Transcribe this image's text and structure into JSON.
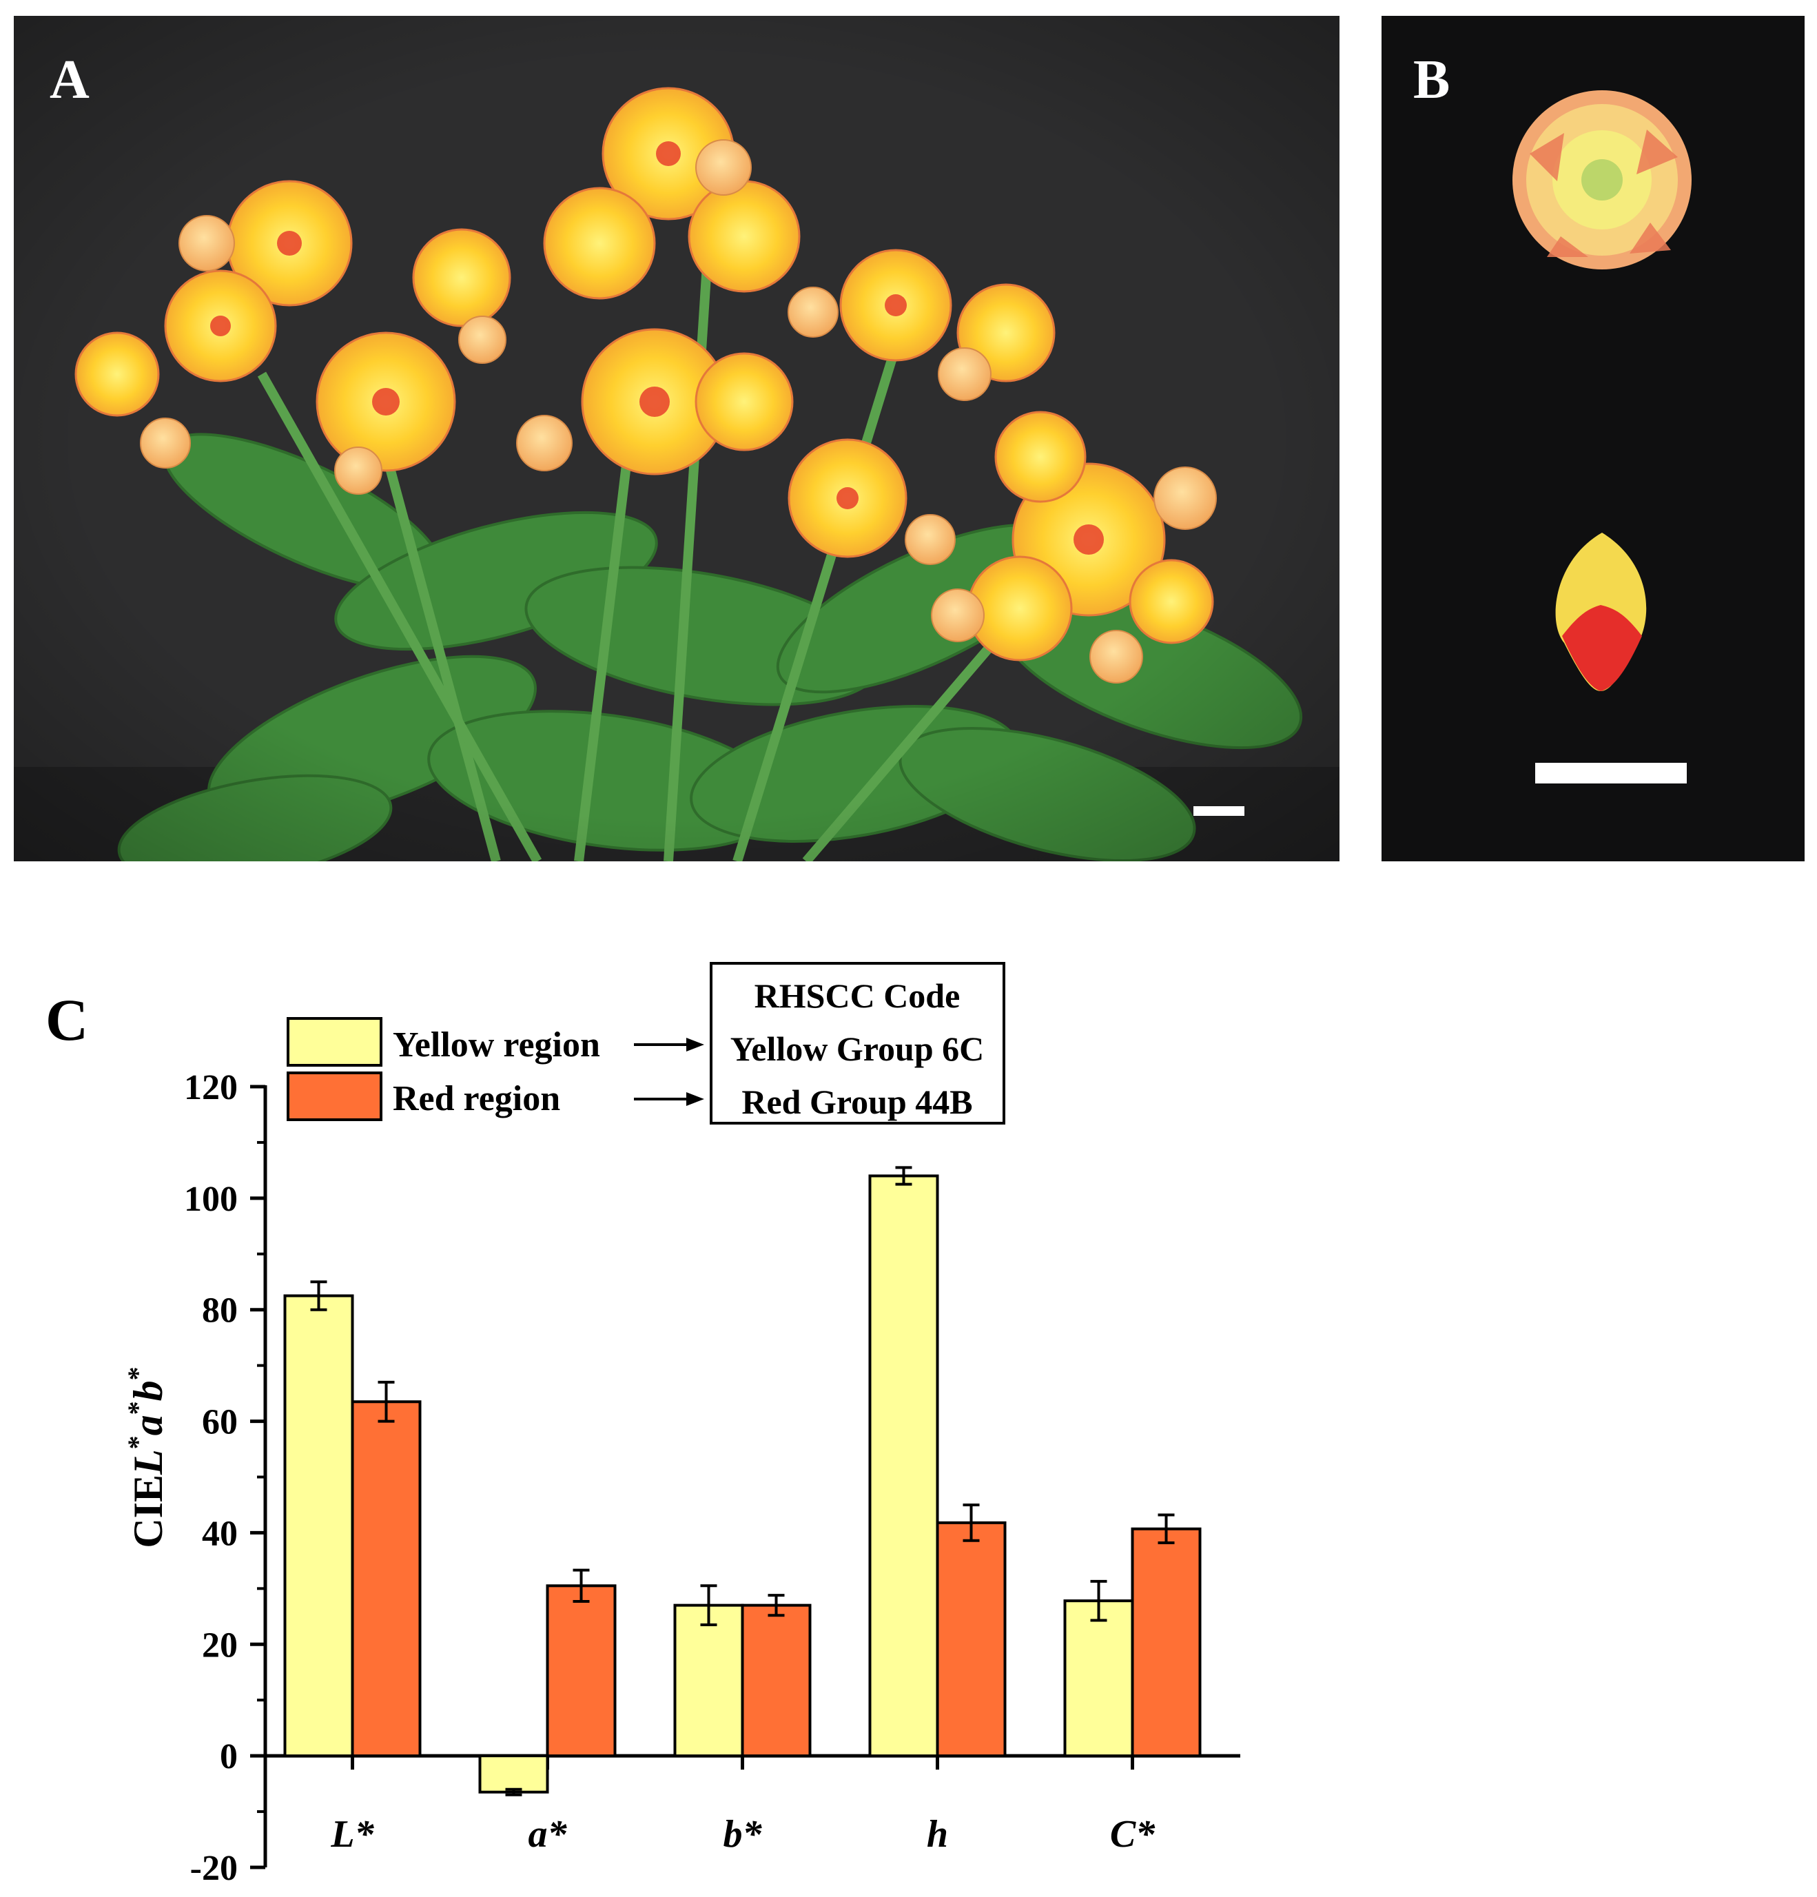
{
  "panels": {
    "a": {
      "label": "A"
    },
    "b": {
      "label": "B"
    },
    "c": {
      "label": "C"
    }
  },
  "colors": {
    "yellow_region": "#ffff99",
    "red_region": "#ff7035",
    "photo_background": "#2b2b2b"
  },
  "legend": {
    "items": [
      "Yellow region",
      "Red region"
    ],
    "table_header": "RHSCC Code",
    "codes": [
      "Yellow Group 6C",
      "Red Group 44B"
    ]
  },
  "chart_data": {
    "type": "bar",
    "categories": [
      "L*",
      "a*",
      "b*",
      "h",
      "C*"
    ],
    "series": [
      {
        "name": "Yellow region",
        "values": [
          82.5,
          -6.5,
          27,
          104,
          27.8
        ],
        "errors": [
          2.5,
          0.5,
          3.5,
          1.5,
          3.5
        ]
      },
      {
        "name": "Red region",
        "values": [
          63.5,
          30.5,
          27,
          41.8,
          40.7
        ],
        "errors": [
          3.5,
          2.8,
          1.8,
          3.2,
          2.5
        ]
      }
    ],
    "ylabel": "CIEL*a*b*",
    "ylim": [
      -20,
      120
    ],
    "yticks": [
      -20,
      0,
      20,
      40,
      60,
      80,
      100,
      120
    ],
    "ytick_labels": [
      "-20",
      "0",
      "20",
      "40",
      "60",
      "80",
      "100",
      "120"
    ],
    "legend_position": "top-left"
  }
}
